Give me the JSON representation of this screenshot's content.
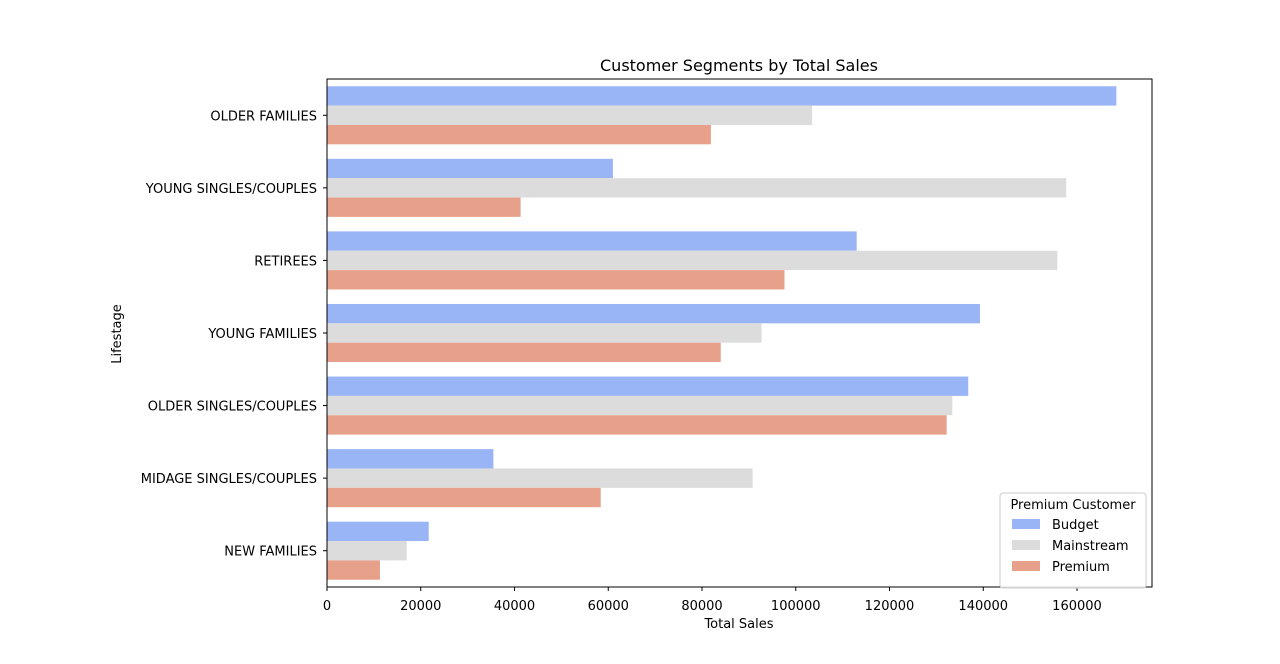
{
  "chart_data": {
    "type": "bar",
    "orientation": "horizontal",
    "title": "Customer Segments by Total Sales",
    "xlabel": "Total Sales",
    "ylabel": "Lifestage",
    "xlim": [
      0,
      176000
    ],
    "xticks": [
      0,
      20000,
      40000,
      60000,
      80000,
      100000,
      120000,
      140000,
      160000
    ],
    "categories": [
      "OLDER FAMILIES",
      "YOUNG SINGLES/COUPLES",
      "RETIREES",
      "YOUNG FAMILIES",
      "OLDER SINGLES/COUPLES",
      "MIDAGE SINGLES/COUPLES",
      "NEW FAMILIES"
    ],
    "series": [
      {
        "name": "Budget",
        "color": "#9ab5f5",
        "values": [
          168400,
          61000,
          113000,
          139300,
          136800,
          35500,
          21700
        ]
      },
      {
        "name": "Mainstream",
        "color": "#dcdcdc",
        "values": [
          103500,
          157700,
          155800,
          92700,
          133400,
          90800,
          17000
        ]
      },
      {
        "name": "Premium",
        "color": "#e7a18a",
        "values": [
          81900,
          41300,
          97600,
          84000,
          132200,
          58400,
          11300
        ]
      }
    ],
    "legend": {
      "title": "Premium Customer",
      "position": "lower-right"
    },
    "grid": false
  }
}
